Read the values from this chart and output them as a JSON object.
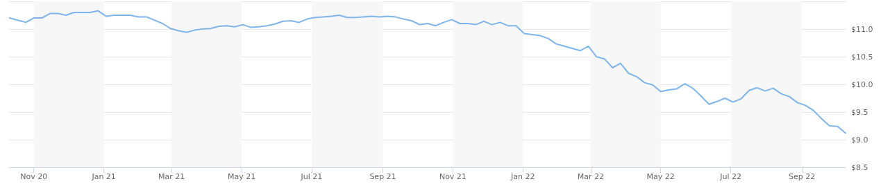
{
  "chart_data": {
    "type": "line",
    "x": [
      "2020-10-11",
      "2020-10-18",
      "2020-10-25",
      "2020-11-01",
      "2020-11-08",
      "2020-11-15",
      "2020-11-22",
      "2020-11-29",
      "2020-12-06",
      "2020-12-13",
      "2020-12-20",
      "2020-12-27",
      "2021-01-03",
      "2021-01-10",
      "2021-01-17",
      "2021-01-24",
      "2021-01-31",
      "2021-02-07",
      "2021-02-14",
      "2021-02-21",
      "2021-02-28",
      "2021-03-07",
      "2021-03-14",
      "2021-03-21",
      "2021-03-28",
      "2021-04-04",
      "2021-04-11",
      "2021-04-18",
      "2021-04-25",
      "2021-05-02",
      "2021-05-09",
      "2021-05-16",
      "2021-05-23",
      "2021-05-30",
      "2021-06-06",
      "2021-06-13",
      "2021-06-20",
      "2021-06-27",
      "2021-07-04",
      "2021-07-11",
      "2021-07-18",
      "2021-07-25",
      "2021-08-01",
      "2021-08-08",
      "2021-08-15",
      "2021-08-22",
      "2021-08-29",
      "2021-09-05",
      "2021-09-12",
      "2021-09-19",
      "2021-09-26",
      "2021-10-03",
      "2021-10-10",
      "2021-10-17",
      "2021-10-24",
      "2021-10-31",
      "2021-11-07",
      "2021-11-14",
      "2021-11-21",
      "2021-11-28",
      "2021-12-05",
      "2021-12-12",
      "2021-12-19",
      "2021-12-26",
      "2022-01-02",
      "2022-01-09",
      "2022-01-16",
      "2022-01-23",
      "2022-01-30",
      "2022-02-06",
      "2022-02-13",
      "2022-02-20",
      "2022-02-27",
      "2022-03-06",
      "2022-03-13",
      "2022-03-20",
      "2022-03-27",
      "2022-04-03",
      "2022-04-10",
      "2022-04-17",
      "2022-04-24",
      "2022-05-01",
      "2022-05-08",
      "2022-05-15",
      "2022-05-22",
      "2022-05-29",
      "2022-06-05",
      "2022-06-12",
      "2022-06-19",
      "2022-06-26",
      "2022-07-03",
      "2022-07-10",
      "2022-07-17",
      "2022-07-24",
      "2022-07-31",
      "2022-08-07",
      "2022-08-14",
      "2022-08-21",
      "2022-08-28",
      "2022-09-04",
      "2022-09-11",
      "2022-09-18",
      "2022-09-25",
      "2022-10-02",
      "2022-10-09"
    ],
    "series": [
      {
        "color": "#7cb5ec",
        "values": [
          11.2,
          11.16,
          11.12,
          11.2,
          11.2,
          11.28,
          11.28,
          11.25,
          11.3,
          11.3,
          11.3,
          11.33,
          11.23,
          11.25,
          11.25,
          11.25,
          11.22,
          11.22,
          11.16,
          11.1,
          11.01,
          10.97,
          10.94,
          10.98,
          11.0,
          11.01,
          11.05,
          11.06,
          11.04,
          11.08,
          11.03,
          11.04,
          11.06,
          11.09,
          11.14,
          11.15,
          11.12,
          11.18,
          11.21,
          11.22,
          11.23,
          11.25,
          11.21,
          11.21,
          11.22,
          11.23,
          11.22,
          11.23,
          11.22,
          11.18,
          11.15,
          11.08,
          11.1,
          11.06,
          11.12,
          11.17,
          11.1,
          11.1,
          11.08,
          11.14,
          11.08,
          11.12,
          11.06,
          11.06,
          10.92,
          10.9,
          10.88,
          10.83,
          10.73,
          10.69,
          10.65,
          10.61,
          10.69,
          10.5,
          10.46,
          10.3,
          10.38,
          10.2,
          10.14,
          10.03,
          9.99,
          9.87,
          9.9,
          9.92,
          10.01,
          9.93,
          9.79,
          9.64,
          9.69,
          9.75,
          9.68,
          9.74,
          9.89,
          9.94,
          9.88,
          9.93,
          9.83,
          9.78,
          9.67,
          9.62,
          9.53,
          9.38,
          9.25,
          9.24,
          9.12
        ]
      }
    ],
    "xlim": [
      "2020-10-11",
      "2022-10-09"
    ],
    "xticks": [
      {
        "value": "2020-11-01",
        "label": "Nov 20"
      },
      {
        "value": "2021-01-01",
        "label": "Jan 21"
      },
      {
        "value": "2021-03-01",
        "label": "Mar 21"
      },
      {
        "value": "2021-05-01",
        "label": "May 21"
      },
      {
        "value": "2021-07-01",
        "label": "Jul 21"
      },
      {
        "value": "2021-09-01",
        "label": "Sep 21"
      },
      {
        "value": "2021-11-01",
        "label": "Nov 21"
      },
      {
        "value": "2022-01-01",
        "label": "Jan 22"
      },
      {
        "value": "2022-03-01",
        "label": "Mar 22"
      },
      {
        "value": "2022-05-01",
        "label": "May 22"
      },
      {
        "value": "2022-07-01",
        "label": "Jul 22"
      },
      {
        "value": "2022-09-01",
        "label": "Sep 22"
      }
    ],
    "ylim": [
      8.5,
      11.5
    ],
    "yticks": [
      {
        "value": 8.5,
        "label": "$8.5"
      },
      {
        "value": 9,
        "label": "$9.0"
      },
      {
        "value": 9.5,
        "label": "$9.5"
      },
      {
        "value": 10,
        "label": "$10.0"
      },
      {
        "value": 10.5,
        "label": "$10.5"
      },
      {
        "value": 11,
        "label": "$11.0"
      },
      {
        "value": 11.5,
        "label": null
      }
    ],
    "bands": [
      {
        "axis": "x",
        "from": "2020-11-01",
        "to": "2021-01-01",
        "color": "#f7f7f7"
      },
      {
        "axis": "x",
        "from": "2021-03-01",
        "to": "2021-05-01",
        "color": "#f7f7f7"
      },
      {
        "axis": "x",
        "from": "2021-07-01",
        "to": "2021-09-01",
        "color": "#f7f7f7"
      },
      {
        "axis": "x",
        "from": "2021-11-01",
        "to": "2022-01-01",
        "color": "#f7f7f7"
      },
      {
        "axis": "x",
        "from": "2022-03-01",
        "to": "2022-05-01",
        "color": "#f7f7f7"
      },
      {
        "axis": "x",
        "from": "2022-07-01",
        "to": "2022-09-01",
        "color": "#f7f7f7"
      }
    ],
    "grid": "y",
    "marker": "none",
    "line_style": "solid"
  }
}
